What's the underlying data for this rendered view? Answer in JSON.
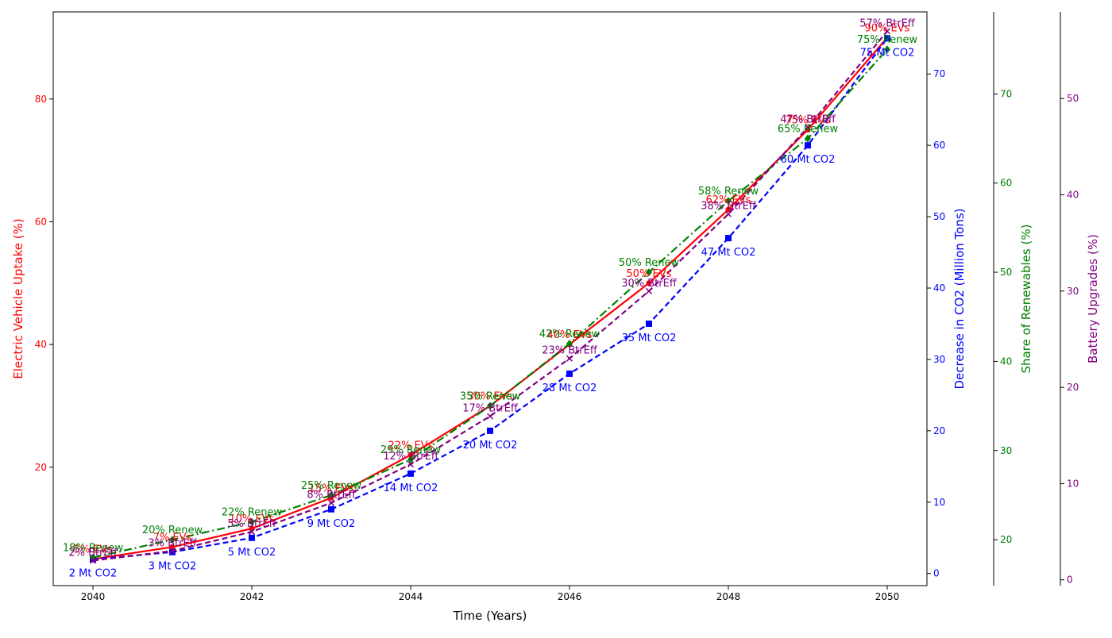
{
  "chart_data": {
    "type": "line",
    "xlabel": "Time (Years)",
    "x": [
      2040,
      2041,
      2042,
      2043,
      2044,
      2045,
      2046,
      2047,
      2048,
      2049,
      2050
    ],
    "x_ticks": [
      2040,
      2042,
      2044,
      2046,
      2048,
      2050
    ],
    "xlim": [
      2039.5,
      2050.5
    ],
    "grid": false,
    "axes": [
      {
        "id": "ev",
        "label": "Electric Vehicle Uptake (%)",
        "color": "#ff0000",
        "side": "left",
        "ylim": [
          0.7,
          94.2
        ],
        "ticks": [
          20,
          40,
          60,
          80
        ]
      },
      {
        "id": "co2",
        "label": "Decrease in CO2 (Million Tons)",
        "color": "#0000ff",
        "side": "right",
        "ylim": [
          -1.7,
          78.7
        ],
        "ticks": [
          0,
          10,
          20,
          30,
          40,
          50,
          60,
          70
        ]
      },
      {
        "id": "renew",
        "label": "Share of Renewables (%)",
        "color": "#008000",
        "side": "right",
        "ylim": [
          14.85,
          79.2
        ],
        "ticks": [
          20,
          30,
          40,
          50,
          60,
          70
        ]
      },
      {
        "id": "battery",
        "label": "Battery Upgrades (%)",
        "color": "#800080",
        "side": "right",
        "ylim": [
          -0.6,
          59.0
        ],
        "ticks": [
          0,
          10,
          20,
          30,
          40,
          50
        ]
      }
    ],
    "series": [
      {
        "axis": "ev",
        "color": "#ff0000",
        "style": "solid",
        "marker": "circle",
        "values": [
          5,
          7,
          10,
          15,
          22,
          30,
          40,
          50,
          62,
          75,
          90
        ],
        "labels": [
          "5% EVs",
          "7% EVs",
          "10% EVs",
          "15% EVs",
          "22% EVs",
          "30% EVs",
          "40% EVs",
          "50% EVs",
          "62% EVs",
          "75% EVs",
          "90% EVs"
        ]
      },
      {
        "axis": "co2",
        "color": "#0000ff",
        "style": "dashed",
        "marker": "square",
        "values": [
          2,
          3,
          5,
          9,
          14,
          20,
          28,
          35,
          47,
          60,
          75
        ],
        "labels": [
          "2 Mt CO2",
          "3 Mt CO2",
          "5 Mt CO2",
          "9 Mt CO2",
          "14 Mt CO2",
          "20 Mt CO2",
          "28 Mt CO2",
          "35 Mt CO2",
          "47 Mt CO2",
          "60 Mt CO2",
          "75 Mt CO2"
        ]
      },
      {
        "axis": "renew",
        "color": "#008000",
        "style": "dashdot",
        "marker": "diamond",
        "values": [
          18,
          20,
          22,
          25,
          29,
          35,
          42,
          50,
          58,
          65,
          75
        ],
        "labels": [
          "18% Renew",
          "20% Renew",
          "22% Renew",
          "25% Renew",
          "29% Renew",
          "35% Renew",
          "42% Renew",
          "50% Renew",
          "58% Renew",
          "65% Renew",
          "75% Renew"
        ]
      },
      {
        "axis": "battery",
        "color": "#800080",
        "style": "dashed",
        "marker": "x",
        "values": [
          2,
          3,
          5,
          8,
          12,
          17,
          23,
          30,
          38,
          47,
          57
        ],
        "labels": [
          "2% BtrEff",
          "3% BtrEff",
          "5% BtrEff",
          "8% BtrEff",
          "12% BtrEff",
          "17% BtrEff",
          "23% BtrEff",
          "30% BtrEff",
          "38% BtrEff",
          "47% BtrEff",
          "57% BtrEff"
        ]
      }
    ]
  }
}
